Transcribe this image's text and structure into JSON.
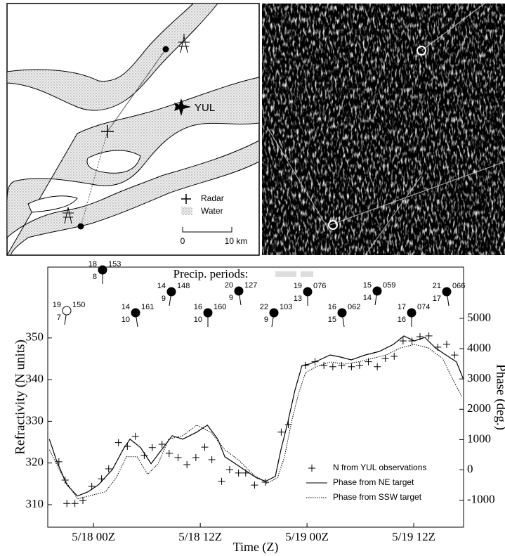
{
  "map": {
    "airport": "YUL",
    "legend": [
      "Radar",
      "Water"
    ],
    "scale": [
      "0",
      "10 km"
    ]
  },
  "precip_title": "Precip. periods:",
  "station_plots": [
    {
      "temp": "19",
      "dew": "7",
      "pressure": "150"
    },
    {
      "temp": "18",
      "dew": "8",
      "pressure": "153"
    },
    {
      "temp": "14",
      "dew": "10",
      "pressure": "161"
    },
    {
      "temp": "14",
      "dew": "9",
      "pressure": "148"
    },
    {
      "temp": "16",
      "dew": "10",
      "pressure": "160"
    },
    {
      "temp": "20",
      "dew": "9",
      "pressure": "127"
    },
    {
      "temp": "22",
      "dew": "9",
      "pressure": "103"
    },
    {
      "temp": "19",
      "dew": "13",
      "pressure": "076"
    },
    {
      "temp": "16",
      "dew": "15",
      "pressure": "062"
    },
    {
      "temp": "15",
      "dew": "14",
      "pressure": "059"
    },
    {
      "temp": "17",
      "dew": "16",
      "pressure": "074"
    },
    {
      "temp": "21",
      "dew": "17",
      "pressure": "066"
    }
  ],
  "chart_data": {
    "type": "line",
    "x_label": "Time (Z)",
    "y_label": "Refractivity (N units)",
    "y2_label": "Phase (deg.)",
    "xlim": [
      -5.15,
      41.6
    ],
    "xticks": [
      {
        "value": 0,
        "label": "5/18 00Z"
      },
      {
        "value": 12,
        "label": "5/18 12Z"
      },
      {
        "value": 24,
        "label": "5/19 00Z"
      },
      {
        "value": 36,
        "label": "5/19 12Z"
      }
    ],
    "ylim": [
      304.6,
      367
    ],
    "yticks": [
      310,
      320,
      330,
      340,
      350
    ],
    "y2lim": [
      -1889,
      6690
    ],
    "y2ticks": [
      -1000,
      0,
      1000,
      2000,
      3000,
      4000,
      5000
    ],
    "series": [
      {
        "name": "N from YUL observations",
        "color": "#000000",
        "style": "marker",
        "x": [
          -3.9,
          -3.2,
          -3.0,
          -2.1,
          -1.2,
          -0.2,
          0.9,
          1.7,
          2.8,
          3.8,
          4.7,
          5.7,
          6.6,
          7.7,
          8.5,
          9.5,
          10.5,
          11.5,
          12.5,
          13.3,
          14.4,
          15.3,
          16.3,
          17.1,
          18.1,
          19.3,
          21.1,
          21.9,
          23.8,
          24.9,
          25.9,
          26.9,
          27.9,
          29.0,
          29.9,
          30.9,
          31.9,
          32.8,
          33.8,
          34.8,
          35.8,
          36.7,
          37.7,
          38.7,
          39.7,
          40.6
        ],
        "values": [
          320.3,
          315.9,
          310.3,
          310.3,
          311.0,
          314.4,
          316.2,
          318.6,
          324.9,
          324.0,
          326.4,
          321.8,
          323.7,
          324.5,
          322.3,
          321.3,
          319.6,
          321.3,
          323.8,
          320.8,
          315.6,
          318.4,
          317.6,
          317.6,
          314.7,
          315.4,
          327.4,
          329.2,
          343.4,
          344.3,
          343.4,
          343.1,
          343.4,
          343.1,
          343.4,
          344.3,
          343.1,
          345.1,
          345.6,
          349.3,
          349.3,
          350.3,
          350.5,
          347.8,
          348.5,
          345.9
        ]
      },
      {
        "name": "Phase from NE target",
        "color": "#000000",
        "style": "solid",
        "axis": "y2",
        "x": [
          -4.97,
          -4.18,
          -3.0,
          -1.82,
          -0.63,
          0.55,
          2.13,
          3.31,
          4.1,
          5.29,
          6.47,
          7.66,
          8.84,
          10.02,
          11.6,
          12.79,
          13.97,
          14.76,
          15.94,
          17.13,
          18.31,
          19.34,
          20.44,
          21.07,
          21.86,
          22.65,
          23.44,
          24.23,
          25.41,
          26.6,
          27.78,
          28.97,
          30.55,
          32.12,
          33.7,
          34.89,
          36.07,
          37.25,
          38.43,
          39.62,
          40.8,
          41.59
        ],
        "values": [
          1014,
          319,
          -491,
          -861,
          -722,
          -491,
          19,
          667,
          1014,
          736,
          204,
          667,
          1130,
          1014,
          1246,
          1477,
          1014,
          435,
          204,
          -28,
          -259,
          -375,
          -213,
          667,
          1593,
          2635,
          3445,
          3491,
          3630,
          3792,
          3723,
          3630,
          3792,
          3908,
          4139,
          4417,
          4255,
          4371,
          4024,
          3792,
          3561,
          2982
        ]
      },
      {
        "name": "Phase from SSW target",
        "color": "#000000",
        "style": "dotted",
        "axis": "y2",
        "x": [
          -4.97,
          -3.39,
          -1.82,
          -0.24,
          1.34,
          2.53,
          3.71,
          4.89,
          6.08,
          7.26,
          8.45,
          10.02,
          11.6,
          13.18,
          14.76,
          16.34,
          17.92,
          19.5,
          20.68,
          21.47,
          22.26,
          23.05,
          23.84,
          25.02,
          26.6,
          28.18,
          29.76,
          31.34,
          32.92,
          34.5,
          36.07,
          37.65,
          39.23,
          40.41,
          41.43
        ],
        "values": [
          667,
          -259,
          -954,
          -838,
          -722,
          -259,
          435,
          435,
          -143,
          204,
          1014,
          1130,
          1477,
          1246,
          667,
          319,
          -143,
          -444,
          -259,
          435,
          1593,
          2519,
          3214,
          3399,
          3561,
          3491,
          3561,
          3677,
          3792,
          4024,
          4139,
          4024,
          3677,
          2982,
          2403
        ]
      }
    ]
  }
}
